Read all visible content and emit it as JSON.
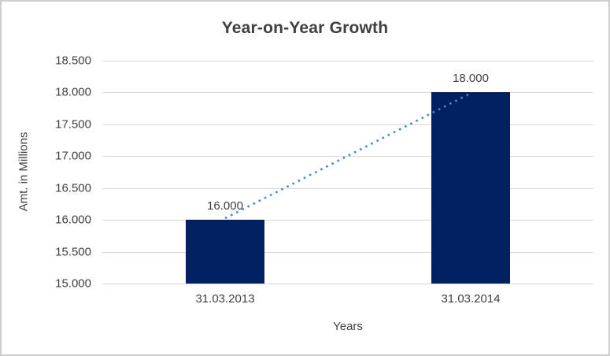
{
  "chart_data": {
    "type": "bar",
    "title": "Year-on-Year Growth",
    "xlabel": "Years",
    "ylabel": "Amt. in Millions",
    "categories": [
      "31.03.2013",
      "31.03.2014"
    ],
    "values": [
      16000,
      18000
    ],
    "value_labels": [
      "16.000",
      "18.000"
    ],
    "ylim": [
      15000,
      18500
    ],
    "ytick_step": 500,
    "ytick_labels": [
      "15.000",
      "15.500",
      "16.000",
      "16.500",
      "17.000",
      "17.500",
      "18.000",
      "18.500"
    ],
    "grid": true,
    "legend": "none",
    "colors": {
      "bar": "#002060",
      "trendline": "#4e86c8",
      "gridline": "#d9d9d9",
      "title_text": "#3f3f3f",
      "axis_text": "#404040",
      "chart_border": "#cdcdcd"
    },
    "trendline": {
      "style": "dotted",
      "from_value": 16000,
      "to_value": 18000
    }
  }
}
